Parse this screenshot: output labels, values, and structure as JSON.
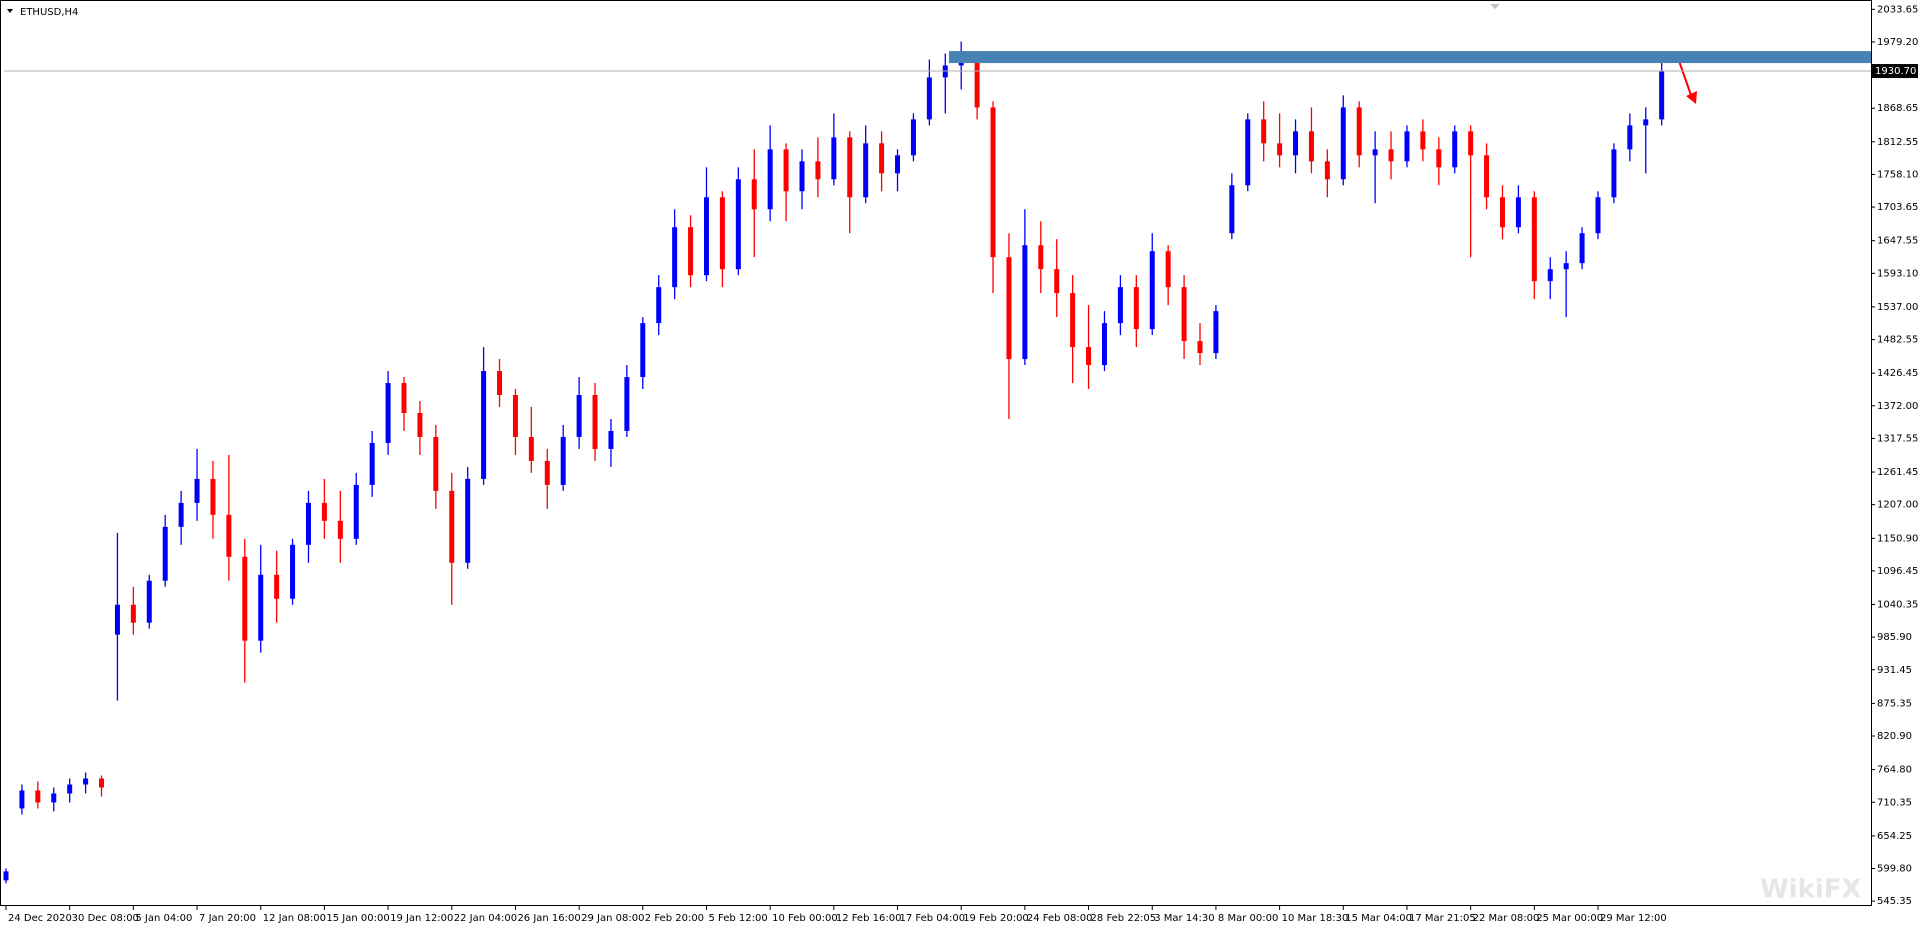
{
  "chart_data": {
    "type": "candlestick",
    "title": "ETHUSD,H4",
    "watermark": "WikiFX",
    "categories": [
      "24 Dec 2020",
      null,
      null,
      null,
      "30 Dec 08:00",
      null,
      null,
      null,
      "5 Jan 04:00",
      null,
      null,
      null,
      "7 Jan 20:00",
      null,
      null,
      null,
      "12 Jan 08:00",
      null,
      null,
      null,
      "15 Jan 00:00",
      null,
      null,
      null,
      "19 Jan 12:00",
      null,
      null,
      null,
      "22 Jan 04:00",
      null,
      null,
      null,
      "26 Jan 16:00",
      null,
      null,
      null,
      "29 Jan 08:00",
      null,
      null,
      null,
      "2 Feb 20:00",
      null,
      null,
      null,
      "5 Feb 12:00",
      null,
      null,
      null,
      "10 Feb 00:00",
      null,
      null,
      null,
      "12 Feb 16:00",
      null,
      null,
      null,
      "17 Feb 04:00",
      null,
      null,
      null,
      "19 Feb 20:00",
      null,
      null,
      null,
      "24 Feb 08:00",
      null,
      null,
      null,
      "28 Feb 22:05",
      null,
      null,
      null,
      "3 Mar 14:30",
      null,
      null,
      null,
      "8 Mar 00:00",
      null,
      null,
      null,
      "10 Mar 18:30",
      null,
      null,
      null,
      "15 Mar 04:00",
      null,
      null,
      null,
      "17 Mar 21:05",
      null,
      null,
      null,
      "22 Mar 08:00",
      null,
      null,
      null,
      "25 Mar 00:00",
      null,
      null,
      null,
      "29 Mar 12:00",
      null,
      null,
      null,
      null
    ],
    "open": [
      580,
      700,
      730,
      710,
      725,
      740,
      750,
      990,
      1040,
      1010,
      1080,
      1170,
      1210,
      1250,
      1190,
      1120,
      980,
      1090,
      1050,
      1140,
      1210,
      1180,
      1150,
      1240,
      1310,
      1410,
      1360,
      1320,
      1230,
      1110,
      1250,
      1430,
      1390,
      1320,
      1280,
      1240,
      1320,
      1390,
      1300,
      1330,
      1420,
      1510,
      1570,
      1670,
      1590,
      1720,
      1600,
      1750,
      1700,
      1800,
      1730,
      1780,
      1750,
      1820,
      1720,
      1810,
      1760,
      1790,
      1850,
      1920,
      1940,
      1950,
      1870,
      1620,
      1450,
      1640,
      1600,
      1560,
      1470,
      1440,
      1510,
      1570,
      1500,
      1630,
      1570,
      1480,
      1460,
      1660,
      1740,
      1850,
      1810,
      1790,
      1830,
      1780,
      1750,
      1870,
      1790,
      1800,
      1780,
      1830,
      1800,
      1770,
      1830,
      1790,
      1720,
      1670,
      1720,
      1580,
      1600,
      1610,
      1660,
      1720,
      1800,
      1840,
      1850
    ],
    "high": [
      600,
      740,
      745,
      735,
      750,
      760,
      755,
      1160,
      1070,
      1090,
      1190,
      1230,
      1300,
      1280,
      1290,
      1150,
      1140,
      1130,
      1150,
      1230,
      1250,
      1230,
      1260,
      1330,
      1430,
      1420,
      1380,
      1340,
      1260,
      1270,
      1470,
      1450,
      1400,
      1370,
      1300,
      1340,
      1420,
      1410,
      1350,
      1440,
      1520,
      1590,
      1700,
      1690,
      1770,
      1730,
      1770,
      1800,
      1840,
      1810,
      1800,
      1820,
      1860,
      1830,
      1840,
      1830,
      1800,
      1860,
      1950,
      1960,
      1980,
      1955,
      1880,
      1660,
      1700,
      1680,
      1650,
      1590,
      1540,
      1530,
      1590,
      1590,
      1660,
      1640,
      1590,
      1510,
      1540,
      1760,
      1860,
      1880,
      1860,
      1850,
      1870,
      1800,
      1890,
      1880,
      1830,
      1830,
      1840,
      1850,
      1820,
      1840,
      1840,
      1810,
      1740,
      1740,
      1730,
      1620,
      1630,
      1670,
      1730,
      1810,
      1860,
      1870,
      1960
    ],
    "low": [
      575,
      690,
      700,
      695,
      710,
      725,
      720,
      880,
      990,
      1000,
      1070,
      1140,
      1180,
      1150,
      1080,
      910,
      960,
      1010,
      1040,
      1110,
      1150,
      1110,
      1140,
      1220,
      1290,
      1330,
      1290,
      1200,
      1040,
      1100,
      1240,
      1370,
      1290,
      1260,
      1200,
      1230,
      1300,
      1280,
      1270,
      1320,
      1400,
      1490,
      1550,
      1570,
      1580,
      1570,
      1590,
      1620,
      1680,
      1680,
      1700,
      1720,
      1740,
      1660,
      1710,
      1730,
      1730,
      1780,
      1840,
      1860,
      1900,
      1850,
      1560,
      1350,
      1440,
      1560,
      1520,
      1410,
      1400,
      1430,
      1490,
      1470,
      1490,
      1540,
      1450,
      1440,
      1450,
      1650,
      1730,
      1780,
      1770,
      1760,
      1760,
      1720,
      1740,
      1770,
      1710,
      1750,
      1770,
      1780,
      1740,
      1760,
      1620,
      1700,
      1650,
      1660,
      1550,
      1550,
      1520,
      1600,
      1650,
      1710,
      1780,
      1760,
      1840
    ],
    "close": [
      595,
      730,
      710,
      725,
      740,
      750,
      735,
      1040,
      1010,
      1080,
      1170,
      1210,
      1250,
      1190,
      1120,
      980,
      1090,
      1050,
      1140,
      1210,
      1180,
      1150,
      1240,
      1310,
      1410,
      1360,
      1320,
      1230,
      1110,
      1250,
      1430,
      1390,
      1320,
      1280,
      1240,
      1320,
      1390,
      1300,
      1330,
      1420,
      1510,
      1570,
      1670,
      1590,
      1720,
      1600,
      1750,
      1700,
      1800,
      1730,
      1780,
      1750,
      1820,
      1720,
      1810,
      1760,
      1790,
      1850,
      1920,
      1940,
      1950,
      1870,
      1620,
      1450,
      1640,
      1600,
      1560,
      1470,
      1440,
      1510,
      1570,
      1500,
      1630,
      1570,
      1480,
      1460,
      1530,
      1740,
      1850,
      1810,
      1790,
      1830,
      1780,
      1750,
      1870,
      1790,
      1800,
      1780,
      1830,
      1800,
      1770,
      1830,
      1790,
      1720,
      1670,
      1720,
      1580,
      1600,
      1610,
      1660,
      1720,
      1800,
      1840,
      1850,
      1930.7
    ],
    "up_color": "#0000ff",
    "down_color": "#ff0000",
    "ylim": [
      537.2,
      2045.9
    ],
    "yticks": [
      2033.65,
      {
        "value": 1979.2,
        "label": "1979.20"
      },
      1868.65,
      1812.55,
      {
        "value": 1758.1,
        "label": "1758.10"
      },
      1703.65,
      1647.55,
      {
        "value": 1593.1,
        "label": "1593.10"
      },
      {
        "value": 1537,
        "label": "1537.00"
      },
      1482.55,
      1426.45,
      {
        "value": 1372,
        "label": "1372.00"
      },
      1317.55,
      1261.45,
      {
        "value": 1207,
        "label": "1207.00"
      },
      {
        "value": 1150.9,
        "label": "1150.90"
      },
      1096.45,
      1040.35,
      {
        "value": 985.9,
        "label": "985.90"
      },
      931.45,
      875.35,
      {
        "value": 820.9,
        "label": "820.90"
      },
      {
        "value": 764.8,
        "label": "764.80"
      },
      710.35,
      654.25,
      {
        "value": 599.8,
        "label": "599.80"
      },
      545.35
    ],
    "current_price": {
      "value": 1930.7,
      "label": "1930.70"
    },
    "zone": [
      1944,
      1964
    ],
    "zone_color": "#4682b4",
    "grid": false
  }
}
